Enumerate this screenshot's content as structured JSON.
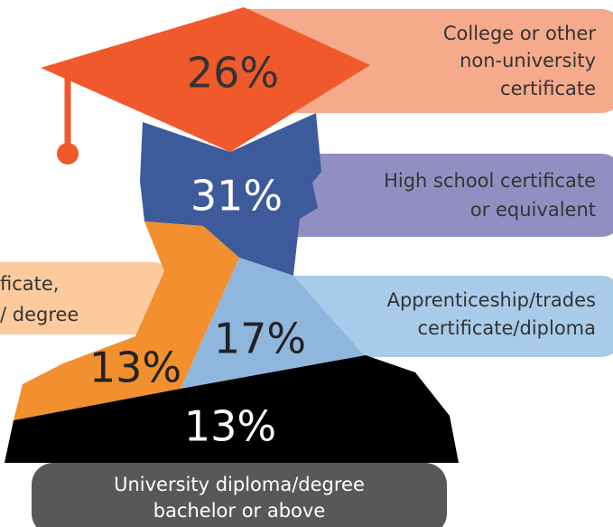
{
  "segments": [
    {
      "percent": "26%",
      "label": [
        "College or other",
        "non-university",
        "certificate"
      ]
    },
    {
      "percent": "31%",
      "label": [
        "High school certificate",
        "or equivalent"
      ]
    },
    {
      "percent": "17%",
      "label": [
        "Apprenticeship/trades",
        "certificate/diploma"
      ]
    },
    {
      "percent": "13%",
      "label": [
        "ficate,",
        "/ degree"
      ]
    },
    {
      "percent": "13%",
      "label": [
        "University diploma/degree",
        "bachelor or above"
      ]
    }
  ]
}
